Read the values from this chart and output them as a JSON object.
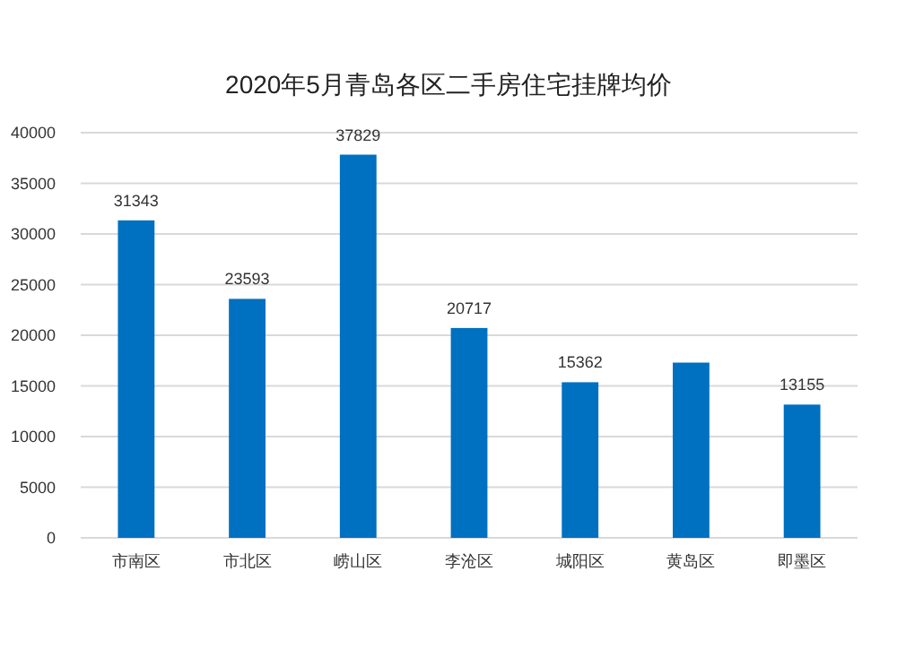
{
  "chart_data": {
    "type": "bar",
    "title": "2020年5月青岛各区二手房住宅挂牌均价",
    "categories": [
      "市南区",
      "市北区",
      "崂山区",
      "李沧区",
      "城阳区",
      "黄岛区",
      "即墨区"
    ],
    "values": [
      31343,
      23593,
      37829,
      20717,
      15362,
      17300,
      13155
    ],
    "value_labels": [
      "31343",
      "23593",
      "37829",
      "20717",
      "15362",
      null,
      "13155"
    ],
    "color": "#0070c0",
    "ylim": [
      0,
      40000
    ],
    "yticks": [
      0,
      5000,
      10000,
      15000,
      20000,
      25000,
      30000,
      35000,
      40000
    ],
    "grid": "y"
  }
}
